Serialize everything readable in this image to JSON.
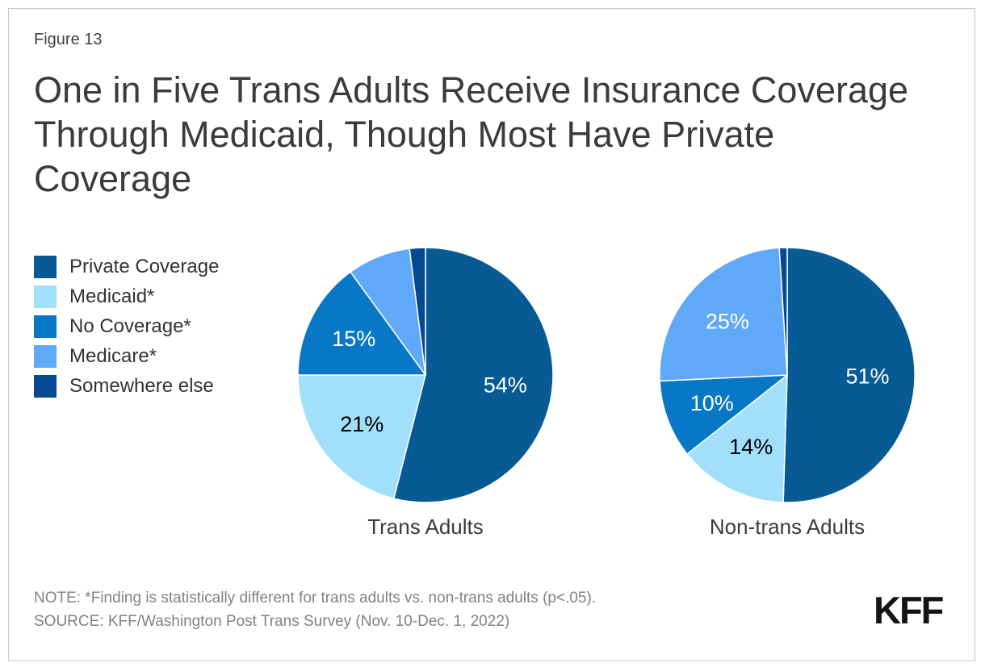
{
  "figure_label": "Figure 13",
  "title": "One in Five Trans Adults Receive Insurance Coverage Through Medicaid, Though Most Have Private Coverage",
  "colors": {
    "private_coverage": "#075A94",
    "medicaid": "#A2DFFB",
    "no_coverage": "#0878C6",
    "medicare": "#60A8F8",
    "somewhere_else": "#054990"
  },
  "legend": {
    "position": "left",
    "items": [
      {
        "label": "Private Coverage",
        "color": "#075A94"
      },
      {
        "label": "Medicaid*",
        "color": "#A2DFFB"
      },
      {
        "label": "No Coverage*",
        "color": "#0878C6"
      },
      {
        "label": "Medicare*",
        "color": "#60A8F8"
      },
      {
        "label": "Somewhere else",
        "color": "#054990"
      }
    ]
  },
  "chart_data": {
    "type": "pie",
    "title": "One in Five Trans Adults Receive Insurance Coverage Through Medicaid, Though Most Have Private Coverage",
    "categories": [
      "Private Coverage",
      "Medicaid*",
      "No Coverage*",
      "Medicare*",
      "Somewhere else"
    ],
    "start_angle_deg": 0,
    "direction": "clockwise",
    "charts": [
      {
        "caption": "Trans Adults",
        "slices": [
          {
            "category": "Private Coverage",
            "value": 54,
            "label": "54%",
            "color": "#075A94",
            "label_color": "#FFFFFF"
          },
          {
            "category": "Medicaid*",
            "value": 21,
            "label": "21%",
            "color": "#A2DFFB",
            "label_color": "#000000"
          },
          {
            "category": "No Coverage*",
            "value": 15,
            "label": "15%",
            "color": "#0878C6",
            "label_color": "#FFFFFF"
          },
          {
            "category": "Medicare*",
            "value": 8,
            "label": "",
            "color": "#60A8F8",
            "label_color": "#FFFFFF"
          },
          {
            "category": "Somewhere else",
            "value": 2,
            "label": "",
            "color": "#054990",
            "label_color": "#FFFFFF"
          }
        ]
      },
      {
        "caption": "Non-trans Adults",
        "slices": [
          {
            "category": "Private Coverage",
            "value": 51,
            "label": "51%",
            "color": "#075A94",
            "label_color": "#FFFFFF"
          },
          {
            "category": "Medicaid*",
            "value": 14,
            "label": "14%",
            "color": "#A2DFFB",
            "label_color": "#000000"
          },
          {
            "category": "No Coverage*",
            "value": 10,
            "label": "10%",
            "color": "#0878C6",
            "label_color": "#FFFFFF"
          },
          {
            "category": "Medicare*",
            "value": 25,
            "label": "25%",
            "color": "#60A8F8",
            "label_color": "#FFFFFF"
          },
          {
            "category": "Somewhere else",
            "value": 1,
            "label": "",
            "color": "#054990",
            "label_color": "#FFFFFF"
          }
        ]
      }
    ]
  },
  "note": "NOTE: *Finding is statistically different for trans adults vs. non-trans adults (p<.05).",
  "source": "SOURCE: KFF/Washington Post Trans Survey (Nov. 10-Dec. 1, 2022)",
  "logo": "KFF"
}
